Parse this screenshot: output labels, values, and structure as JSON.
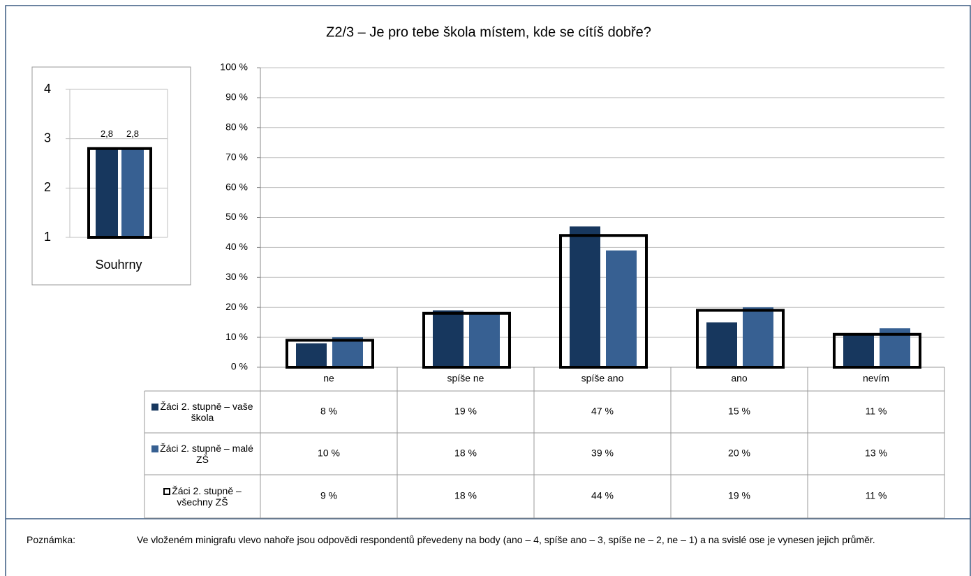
{
  "chart_data": [
    {
      "type": "bar",
      "title": "Z2/3 – Je pro tebe škola místem, kde se cítíš dobře?",
      "categories": [
        "ne",
        "spíše ne",
        "spíše ano",
        "ano",
        "nevím"
      ],
      "series": [
        {
          "name": "Žáci 2. stupně – vaše škola",
          "color": "#17375e",
          "style": "fill",
          "values": [
            8,
            19,
            47,
            15,
            11
          ],
          "value_labels": [
            "8 %",
            "19 %",
            "47 %",
            "15 %",
            "11 %"
          ]
        },
        {
          "name": "Žáci 2. stupně – malé ZŠ",
          "color": "#376092",
          "style": "fill",
          "values": [
            10,
            18,
            39,
            20,
            13
          ],
          "value_labels": [
            "10 %",
            "18 %",
            "39 %",
            "20 %",
            "13 %"
          ]
        },
        {
          "name": "Žáci 2. stupně – všechny ZŠ",
          "color": "#000000",
          "style": "outline",
          "values": [
            9,
            18,
            44,
            19,
            11
          ],
          "value_labels": [
            "9 %",
            "18 %",
            "44 %",
            "19 %",
            "11 %"
          ]
        }
      ],
      "ylim": [
        0,
        100
      ],
      "yticks": [
        {
          "value": 0,
          "label": "0 %"
        },
        {
          "value": 10,
          "label": "10 %"
        },
        {
          "value": 20,
          "label": "20 %"
        },
        {
          "value": 30,
          "label": "30 %"
        },
        {
          "value": 40,
          "label": "40 %"
        },
        {
          "value": 50,
          "label": "50 %"
        },
        {
          "value": 60,
          "label": "60 %"
        },
        {
          "value": 70,
          "label": "70 %"
        },
        {
          "value": 80,
          "label": "80 %"
        },
        {
          "value": 90,
          "label": "90 %"
        },
        {
          "value": 100,
          "label": "100 %"
        }
      ],
      "grid": true
    },
    {
      "type": "bar",
      "categories": [
        "Souhrny"
      ],
      "series": [
        {
          "color": "#17375e",
          "style": "fill",
          "values": [
            2.8
          ],
          "value_labels": [
            "2,8"
          ]
        },
        {
          "color": "#376092",
          "style": "fill",
          "values": [
            2.8
          ],
          "value_labels": [
            "2,8"
          ]
        },
        {
          "color": "#000000",
          "style": "outline",
          "values": [
            2.8
          ]
        }
      ],
      "ylim": [
        1,
        4
      ],
      "yticks": [
        1,
        2,
        3,
        4
      ],
      "grid": true
    }
  ],
  "note": {
    "label": "Poznámka:",
    "text": "Ve vloženém minigrafu vlevo nahoře jsou odpovědi respondentů převedeny na body (ano – 4, spíše ano – 3, spíše ne – 2, ne – 1) a na svislé ose je vynesen jejich průměr."
  }
}
